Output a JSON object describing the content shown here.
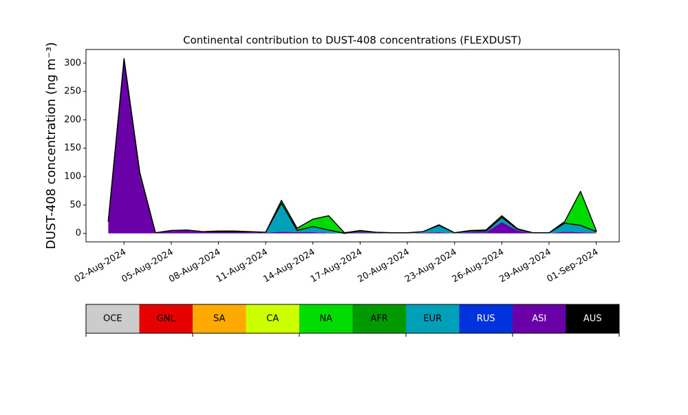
{
  "chart_data": {
    "type": "stacked-area",
    "title": "Continental contribution to DUST-408 concentrations (FLEXDUST)",
    "ylabel": "DUST-408 concentration (ng m⁻³)",
    "x": [
      "2024-08-01",
      "2024-08-02",
      "2024-08-03",
      "2024-08-04",
      "2024-08-05",
      "2024-08-06",
      "2024-08-07",
      "2024-08-08",
      "2024-08-09",
      "2024-08-10",
      "2024-08-11",
      "2024-08-12",
      "2024-08-13",
      "2024-08-14",
      "2024-08-15",
      "2024-08-16",
      "2024-08-17",
      "2024-08-18",
      "2024-08-19",
      "2024-08-20",
      "2024-08-21",
      "2024-08-22",
      "2024-08-23",
      "2024-08-24",
      "2024-08-25",
      "2024-08-26",
      "2024-08-27",
      "2024-08-28",
      "2024-08-29",
      "2024-08-30",
      "2024-08-31",
      "2024-09-01"
    ],
    "series": [
      {
        "name": "ASI",
        "color": "#6a00a8",
        "values": [
          20,
          300,
          100,
          1,
          4,
          5,
          2,
          2,
          2,
          2,
          1,
          3,
          2,
          2,
          1,
          0,
          2,
          1,
          0,
          0,
          1,
          2,
          0,
          2,
          2,
          20,
          5,
          0,
          0,
          3,
          2,
          1
        ]
      },
      {
        "name": "EUR",
        "color": "#00a0b8",
        "values": [
          1,
          5,
          5,
          0,
          1,
          1,
          1,
          1,
          1,
          1,
          1,
          50,
          3,
          10,
          5,
          0,
          2,
          1,
          1,
          1,
          2,
          12,
          1,
          2,
          2,
          8,
          2,
          1,
          1,
          15,
          12,
          2
        ]
      },
      {
        "name": "NA",
        "color": "#00dc00",
        "values": [
          1,
          3,
          2,
          0,
          0,
          0,
          0,
          1,
          1,
          0,
          0,
          5,
          4,
          13,
          25,
          1,
          1,
          0,
          0,
          0,
          0,
          1,
          0,
          1,
          2,
          3,
          1,
          0,
          0,
          3,
          60,
          2
        ]
      }
    ],
    "xlim": [
      "2024-07-30T14:00Z",
      "2024-09-02T11:00Z"
    ],
    "xticks": [
      {
        "value": "2024-08-02",
        "label": "02-Aug-2024"
      },
      {
        "value": "2024-08-05",
        "label": "05-Aug-2024"
      },
      {
        "value": "2024-08-08",
        "label": "08-Aug-2024"
      },
      {
        "value": "2024-08-11",
        "label": "11-Aug-2024"
      },
      {
        "value": "2024-08-14",
        "label": "14-Aug-2024"
      },
      {
        "value": "2024-08-17",
        "label": "17-Aug-2024"
      },
      {
        "value": "2024-08-20",
        "label": "20-Aug-2024"
      },
      {
        "value": "2024-08-23",
        "label": "23-Aug-2024"
      },
      {
        "value": "2024-08-26",
        "label": "26-Aug-2024"
      },
      {
        "value": "2024-08-29",
        "label": "29-Aug-2024"
      },
      {
        "value": "2024-09-01",
        "label": "01-Sep-2024"
      }
    ],
    "ylim": [
      -15,
      324
    ],
    "yticks": [
      0,
      50,
      100,
      150,
      200,
      250,
      300
    ],
    "outline_color": "#000000",
    "colorbar": {
      "labels": [
        "OCE",
        "GNL",
        "SA",
        "CA",
        "NA",
        "AFR",
        "EUR",
        "RUS",
        "ASI",
        "AUS"
      ],
      "colors": [
        "#cccccc",
        "#e60000",
        "#ffaa00",
        "#ccff00",
        "#00dc00",
        "#009a00",
        "#00a0b8",
        "#0033dd",
        "#6a00a8",
        "#000000"
      ]
    }
  }
}
